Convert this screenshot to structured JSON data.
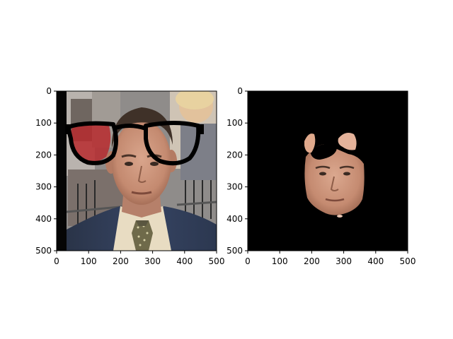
{
  "figure": {
    "background": "#ffffff",
    "axes_color": "#000000"
  },
  "panels": [
    {
      "id": "left",
      "content": "face photo with glasses overlay",
      "xlim": [
        0,
        500
      ],
      "ylim": [
        500,
        0
      ],
      "xticks": [
        "0",
        "100",
        "200",
        "300",
        "400",
        "500"
      ],
      "yticks": [
        "0",
        "100",
        "200",
        "300",
        "400",
        "500"
      ]
    },
    {
      "id": "right",
      "content": "segmented face mask on black",
      "xlim": [
        0,
        500
      ],
      "ylim": [
        500,
        0
      ],
      "xticks": [
        "0",
        "100",
        "200",
        "300",
        "400",
        "500"
      ],
      "yticks": [
        "0",
        "100",
        "200",
        "300",
        "400",
        "500"
      ]
    }
  ]
}
